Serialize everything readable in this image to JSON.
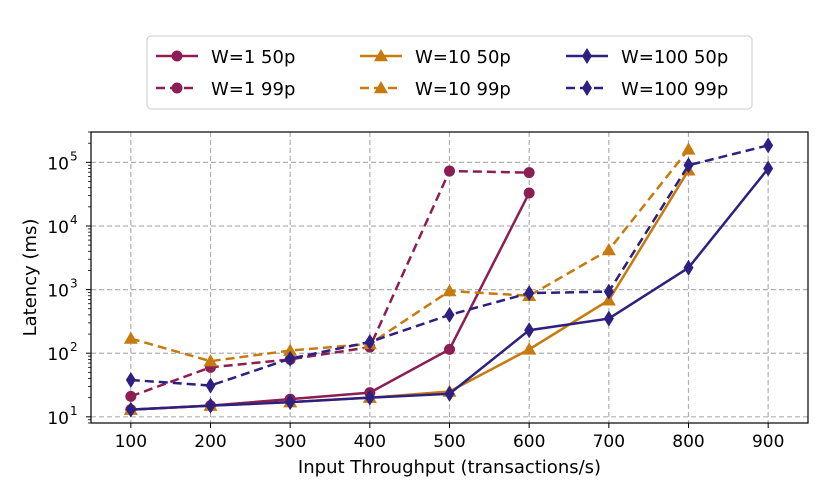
{
  "chart_data": {
    "type": "line",
    "xlabel": "Input Throughput (transactions/s)",
    "ylabel": "Latency (ms)",
    "yscale": "log",
    "xlim": [
      50,
      950
    ],
    "ylim": [
      8,
      300000
    ],
    "grid": true,
    "legend_position": "top-center",
    "xticks": [
      100,
      200,
      300,
      400,
      500,
      600,
      700,
      800,
      900
    ],
    "xtick_labels": [
      "100",
      "200",
      "300",
      "400",
      "500",
      "600",
      "700",
      "800",
      "900"
    ],
    "yticks": [
      10,
      100,
      1000,
      10000,
      100000
    ],
    "ytick_labels": [
      "10",
      "10",
      "10",
      "10",
      "10"
    ],
    "ytick_exponents": [
      "1",
      "2",
      "3",
      "4",
      "5"
    ],
    "series": [
      {
        "name": "W=1 50p",
        "color": "#8b1e52",
        "style": "solid",
        "marker": "circle",
        "x": [
          100,
          200,
          300,
          400,
          500,
          600
        ],
        "y": [
          13,
          15,
          19,
          24,
          115,
          33000
        ]
      },
      {
        "name": "W=1 99p",
        "color": "#8b1e52",
        "style": "dashed",
        "marker": "circle",
        "x": [
          100,
          200,
          300,
          400,
          500,
          600
        ],
        "y": [
          21,
          60,
          80,
          125,
          73000,
          69000
        ]
      },
      {
        "name": "W=10 50p",
        "color": "#c77a0e",
        "style": "solid",
        "marker": "triangle",
        "x": [
          100,
          200,
          300,
          400,
          500,
          600,
          700,
          800
        ],
        "y": [
          13,
          15,
          17,
          20,
          25,
          115,
          680,
          75000
        ]
      },
      {
        "name": "W=10 99p",
        "color": "#c77a0e",
        "style": "dashed",
        "marker": "triangle",
        "x": [
          100,
          200,
          300,
          400,
          500,
          600,
          700,
          800
        ],
        "y": [
          170,
          75,
          110,
          140,
          950,
          800,
          4200,
          160000
        ]
      },
      {
        "name": "W=100 50p",
        "color": "#2e2080",
        "style": "solid",
        "marker": "diamond",
        "x": [
          100,
          200,
          300,
          400,
          500,
          600,
          700,
          800,
          900
        ],
        "y": [
          13,
          15,
          17,
          20,
          23,
          230,
          350,
          2200,
          80000
        ]
      },
      {
        "name": "W=100 99p",
        "color": "#2e2080",
        "style": "dashed",
        "marker": "diamond",
        "x": [
          100,
          200,
          300,
          400,
          500,
          600,
          700,
          800,
          900
        ],
        "y": [
          38,
          31,
          82,
          150,
          400,
          880,
          930,
          90000,
          185000
        ]
      }
    ]
  }
}
